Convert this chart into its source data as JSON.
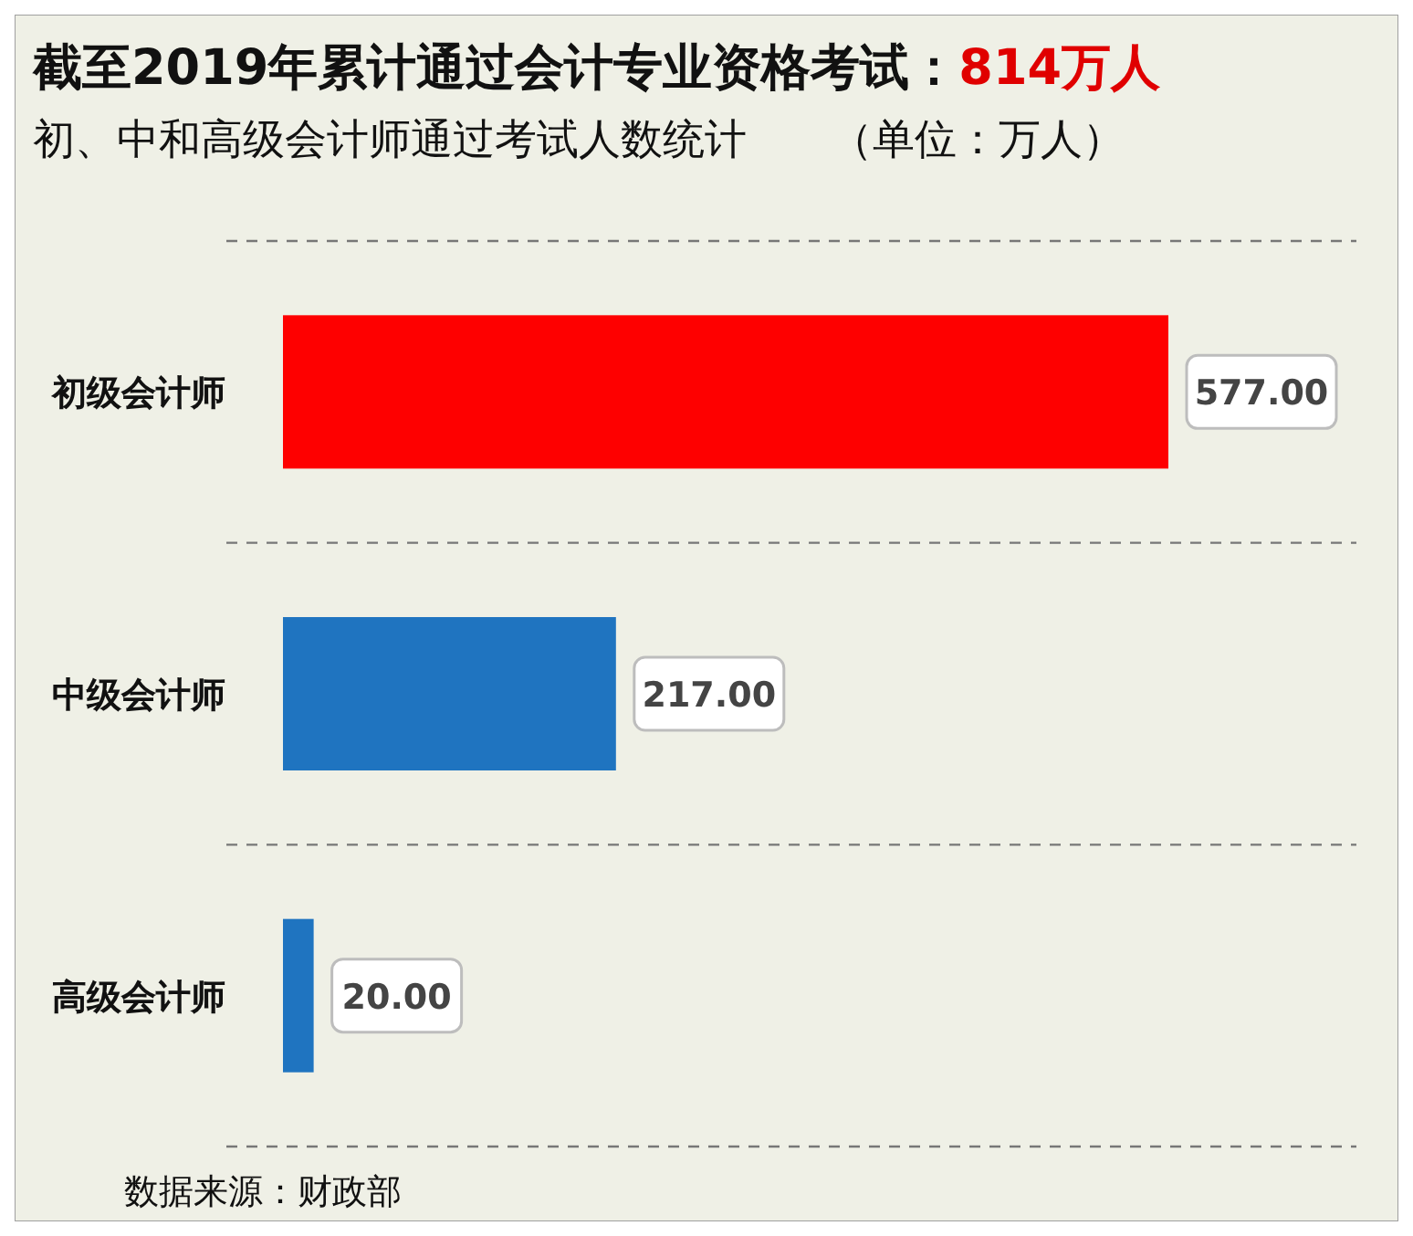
{
  "chart_data": {
    "type": "bar",
    "orientation": "horizontal",
    "title": "截至2019年累计通过会计专业资格考试：814万人",
    "subtitle": "初、中和高级会计师通过考试人数统计　　（单位：万人）",
    "categories": [
      "初级会计师",
      "中级会计师",
      "高级会计师"
    ],
    "values": [
      577,
      217,
      20
    ],
    "colors": [
      "#fe0000",
      "#1f74c0",
      "#1f74c0"
    ],
    "value_labels": [
      "577.00",
      "217.00",
      "20.00"
    ],
    "grid": "y",
    "annotations": [
      "数据来源：财政部"
    ]
  }
}
